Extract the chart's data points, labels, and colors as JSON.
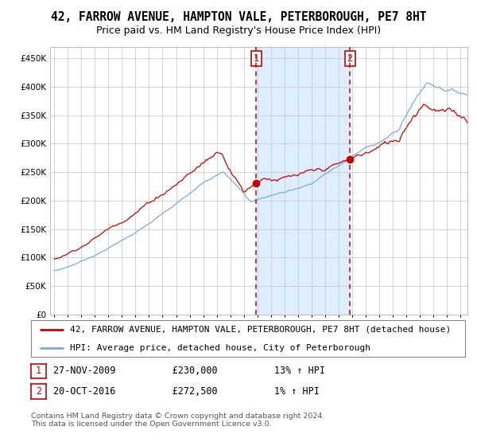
{
  "title": "42, FARROW AVENUE, HAMPTON VALE, PETERBOROUGH, PE7 8HT",
  "subtitle": "Price paid vs. HM Land Registry's House Price Index (HPI)",
  "ylim": [
    0,
    470000
  ],
  "yticks": [
    0,
    50000,
    100000,
    150000,
    200000,
    250000,
    300000,
    350000,
    400000,
    450000
  ],
  "xlim_start": 1994.7,
  "xlim_end": 2025.5,
  "sale1_date": 2009.92,
  "sale1_price": 230000,
  "sale2_date": 2016.82,
  "sale2_price": 272500,
  "red_line_color": "#cc0000",
  "blue_line_color": "#7aaadd",
  "shade_color": "#ddeeff",
  "vline_color": "#cc0000",
  "grid_color": "#cccccc",
  "background_color": "#ffffff",
  "legend_entry1": "42, FARROW AVENUE, HAMPTON VALE, PETERBOROUGH, PE7 8HT (detached house)",
  "legend_entry2": "HPI: Average price, detached house, City of Peterborough",
  "table_row1": [
    "1",
    "27-NOV-2009",
    "£230,000",
    "13% ↑ HPI"
  ],
  "table_row2": [
    "2",
    "20-OCT-2016",
    "£272,500",
    "1% ↑ HPI"
  ],
  "footnote": "Contains HM Land Registry data © Crown copyright and database right 2024.\nThis data is licensed under the Open Government Licence v3.0.",
  "title_fontsize": 10.5,
  "subtitle_fontsize": 9,
  "tick_fontsize": 7.5,
  "legend_fontsize": 8
}
